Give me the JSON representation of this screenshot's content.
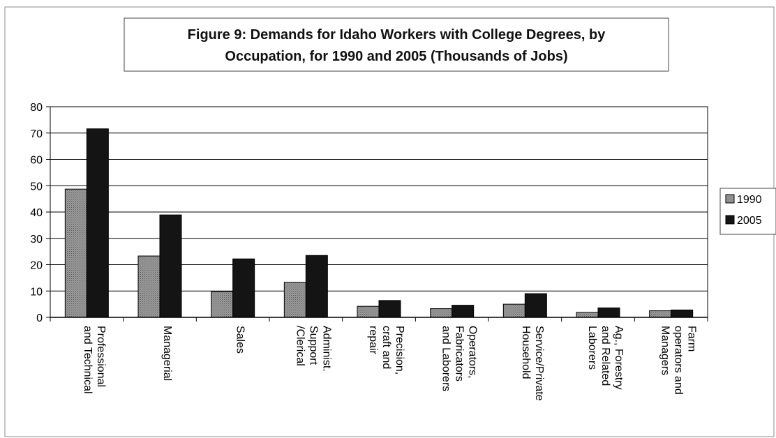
{
  "chart_data": {
    "type": "bar",
    "title": "Figure 9: Demands for Idaho Workers with College Degrees, by Occupation, for 1990 and 2005 (Thousands of Jobs)",
    "title_lines": [
      "Figure 9: Demands for Idaho Workers with College Degrees, by",
      "Occupation, for 1990 and 2005 (Thousands of Jobs)"
    ],
    "xlabel": "",
    "ylabel": "",
    "ylim": [
      0,
      80
    ],
    "yticks": [
      0,
      10,
      20,
      30,
      40,
      50,
      60,
      70,
      80
    ],
    "grid": true,
    "legend": "right",
    "categories": [
      [
        "Professional",
        "and Technical"
      ],
      [
        "Managerial"
      ],
      [
        "Sales"
      ],
      [
        "Administ.",
        "Support",
        "/Clerical"
      ],
      [
        "Precision,",
        "craft and",
        "repair"
      ],
      [
        "Operators,",
        "Fabricators",
        "and Laborers"
      ],
      [
        "Service/Private",
        "Household"
      ],
      [
        "Ag., Forestry",
        "and Related",
        "Laborers"
      ],
      [
        "Farm",
        "operators and",
        "Managers"
      ]
    ],
    "series": [
      {
        "name": "1990",
        "color": "#8a8a8a",
        "values": [
          48.7,
          23.3,
          9.8,
          13.3,
          4.2,
          3.3,
          5.0,
          1.9,
          2.5
        ]
      },
      {
        "name": "2005",
        "color": "#141414",
        "values": [
          71.6,
          38.9,
          22.2,
          23.5,
          6.4,
          4.6,
          9.0,
          3.6,
          2.8
        ]
      }
    ]
  }
}
